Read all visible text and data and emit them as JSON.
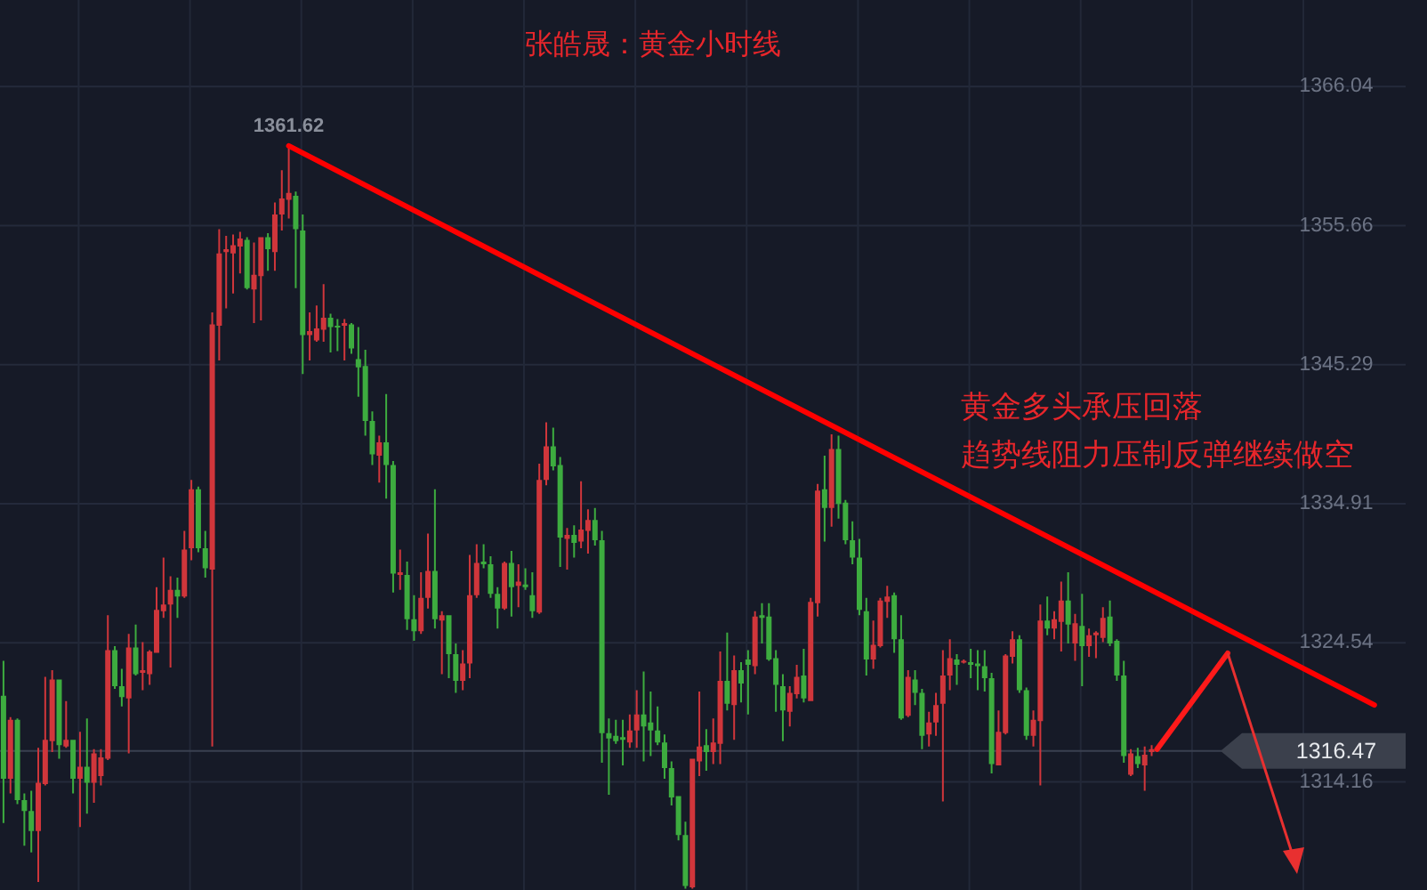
{
  "chart_data": {
    "type": "candlestick",
    "title": "张皓晟：黄金小时线",
    "annotations": [
      "黄金多头承压回落",
      "趋势线阻力压制反弹继续做空",
      {
        "text": "1361.62",
        "y": 1361.62
      }
    ],
    "categories": [
      null,
      null,
      null,
      null,
      null,
      null,
      null,
      null,
      null,
      null,
      null,
      null,
      null,
      null,
      null,
      null,
      null,
      null,
      null,
      null,
      null,
      null,
      null,
      null,
      null,
      null,
      null,
      null,
      null,
      null,
      null,
      null,
      null,
      null,
      null,
      null,
      null,
      null,
      null,
      null,
      null,
      null,
      null,
      null,
      null,
      null,
      null,
      null,
      null,
      null,
      null,
      null,
      null,
      null,
      null,
      null,
      null,
      null,
      null,
      null,
      null,
      null,
      null,
      null,
      null,
      null,
      null,
      null,
      null,
      null,
      null,
      null,
      null,
      null,
      null,
      null,
      null,
      null,
      null,
      null,
      null,
      null,
      null,
      null,
      null,
      null,
      null,
      null,
      null,
      null,
      null,
      null,
      null,
      null,
      null,
      null,
      null,
      null,
      null,
      null,
      null,
      null,
      null,
      null,
      null,
      null,
      null,
      null,
      null,
      null,
      null,
      null,
      null,
      null,
      null,
      null,
      null,
      null,
      null,
      null,
      null,
      null,
      null,
      null,
      null,
      null,
      null,
      null,
      null,
      null,
      null,
      null,
      null,
      null,
      null,
      null,
      null,
      null,
      null,
      null,
      null,
      null,
      null,
      null,
      null,
      null,
      null,
      null,
      null,
      null,
      null,
      null,
      null,
      null,
      null,
      null,
      null,
      null,
      null,
      null,
      null,
      null,
      null,
      null,
      null,
      null,
      null,
      null,
      null,
      null,
      null,
      null,
      null,
      null,
      null,
      null,
      null,
      null,
      null,
      null,
      null,
      null,
      null,
      null,
      null,
      null,
      null,
      null,
      null,
      null,
      null,
      null,
      null,
      null,
      null,
      null,
      null,
      null,
      null,
      null,
      null,
      null
    ],
    "ohlc": [
      [
        1320.6,
        1323.2,
        1311.1,
        1314.4
      ],
      [
        1314.4,
        1319.0,
        1313.3,
        1318.8
      ],
      [
        1318.8,
        1318.9,
        1312.5,
        1312.8
      ],
      [
        1312.8,
        1313.3,
        1309.4,
        1312.0
      ],
      [
        1312.0,
        1313.5,
        1308.9,
        1310.5
      ],
      [
        1310.5,
        1316.7,
        1306.7,
        1314.1
      ],
      [
        1314.0,
        1322.0,
        1313.9,
        1317.3
      ],
      [
        1317.2,
        1322.5,
        1316.4,
        1321.8
      ],
      [
        1321.8,
        1321.8,
        1315.9,
        1316.9
      ],
      [
        1316.8,
        1320.2,
        1316.7,
        1317.3
      ],
      [
        1317.3,
        1317.3,
        1313.3,
        1314.4
      ],
      [
        1314.4,
        1317.9,
        1310.8,
        1315.3
      ],
      [
        1315.3,
        1318.9,
        1311.8,
        1314.1
      ],
      [
        1314.1,
        1316.6,
        1312.6,
        1316.3
      ],
      [
        1314.6,
        1316.6,
        1313.9,
        1316.0
      ],
      [
        1315.9,
        1326.6,
        1315.8,
        1324.0
      ],
      [
        1324.0,
        1324.3,
        1321.1,
        1321.3
      ],
      [
        1321.3,
        1322.6,
        1319.8,
        1320.5
      ],
      [
        1320.4,
        1325.2,
        1316.3,
        1324.2
      ],
      [
        1324.2,
        1325.9,
        1322.1,
        1322.2
      ],
      [
        1322.3,
        1324.6,
        1321.0,
        1322.5
      ],
      [
        1322.2,
        1324.0,
        1321.4,
        1323.9
      ],
      [
        1323.8,
        1328.7,
        1323.8,
        1327.0
      ],
      [
        1326.9,
        1330.9,
        1326.4,
        1327.4
      ],
      [
        1327.4,
        1329.5,
        1322.7,
        1328.5
      ],
      [
        1328.5,
        1329.4,
        1326.4,
        1328.0
      ],
      [
        1328.0,
        1332.9,
        1327.9,
        1331.5
      ],
      [
        1331.6,
        1336.7,
        1330.7,
        1336.0
      ],
      [
        1336.0,
        1336.2,
        1331.3,
        1331.6
      ],
      [
        1331.6,
        1332.9,
        1329.4,
        1330.1
      ],
      [
        1330.0,
        1349.2,
        1316.8,
        1348.3
      ],
      [
        1348.2,
        1355.4,
        1345.6,
        1353.6
      ],
      [
        1353.7,
        1354.9,
        1349.5,
        1353.9
      ],
      [
        1353.6,
        1355.0,
        1350.6,
        1354.2
      ],
      [
        1354.1,
        1355.2,
        1352.1,
        1354.7
      ],
      [
        1354.6,
        1354.8,
        1350.9,
        1351.0
      ],
      [
        1350.9,
        1354.4,
        1348.4,
        1352.0
      ],
      [
        1351.9,
        1354.8,
        1348.6,
        1354.8
      ],
      [
        1354.8,
        1355.1,
        1352.3,
        1353.9
      ],
      [
        1353.7,
        1357.4,
        1352.3,
        1356.5
      ],
      [
        1356.5,
        1359.8,
        1355.3,
        1357.7
      ],
      [
        1357.6,
        1361.62,
        1356.2,
        1358.1
      ],
      [
        1357.9,
        1358.2,
        1351.0,
        1355.4
      ],
      [
        1355.3,
        1356.5,
        1344.6,
        1347.5
      ],
      [
        1347.5,
        1349.2,
        1345.6,
        1347.8
      ],
      [
        1347.1,
        1349.7,
        1347.0,
        1348.0
      ],
      [
        1347.9,
        1351.3,
        1347.0,
        1348.8
      ],
      [
        1348.8,
        1349.1,
        1346.2,
        1348.1
      ],
      [
        1348.2,
        1348.7,
        1346.3,
        1348.1
      ],
      [
        1348.2,
        1348.7,
        1345.6,
        1348.4
      ],
      [
        1348.3,
        1348.4,
        1346.1,
        1346.5
      ],
      [
        1345.7,
        1348.1,
        1342.9,
        1345.1
      ],
      [
        1345.2,
        1346.4,
        1340.0,
        1341.1
      ],
      [
        1341.1,
        1341.8,
        1337.8,
        1338.6
      ],
      [
        1338.5,
        1340.0,
        1336.5,
        1339.5
      ],
      [
        1339.5,
        1343.1,
        1335.3,
        1337.8
      ],
      [
        1337.8,
        1338.1,
        1328.3,
        1329.7
      ],
      [
        1329.6,
        1331.5,
        1328.5,
        1329.8
      ],
      [
        1329.6,
        1330.6,
        1325.5,
        1326.3
      ],
      [
        1326.3,
        1328.1,
        1324.7,
        1325.4
      ],
      [
        1325.4,
        1329.8,
        1325.2,
        1327.9
      ],
      [
        1327.9,
        1332.7,
        1327.1,
        1329.9
      ],
      [
        1329.9,
        1336.0,
        1325.6,
        1326.3
      ],
      [
        1326.2,
        1326.9,
        1322.2,
        1326.6
      ],
      [
        1326.6,
        1326.6,
        1321.9,
        1323.7
      ],
      [
        1323.7,
        1324.5,
        1320.8,
        1321.7
      ],
      [
        1321.7,
        1324.0,
        1321.0,
        1323.0
      ],
      [
        1323.0,
        1331.1,
        1321.9,
        1328.1
      ],
      [
        1328.1,
        1331.9,
        1327.9,
        1330.5
      ],
      [
        1330.6,
        1331.9,
        1330.1,
        1330.4
      ],
      [
        1330.4,
        1331.0,
        1327.9,
        1328.2
      ],
      [
        1328.2,
        1328.7,
        1325.6,
        1327.1
      ],
      [
        1327.1,
        1330.6,
        1327.0,
        1330.5
      ],
      [
        1330.5,
        1331.4,
        1326.5,
        1328.7
      ],
      [
        1328.8,
        1330.4,
        1327.2,
        1329.1
      ],
      [
        1328.9,
        1330.1,
        1328.5,
        1328.7
      ],
      [
        1328.1,
        1329.8,
        1326.4,
        1326.9
      ],
      [
        1326.8,
        1337.9,
        1326.7,
        1336.7
      ],
      [
        1336.7,
        1341.0,
        1336.3,
        1339.2
      ],
      [
        1339.2,
        1340.6,
        1337.4,
        1337.7
      ],
      [
        1337.8,
        1338.4,
        1330.2,
        1332.4
      ],
      [
        1332.3,
        1333.1,
        1330.0,
        1332.6
      ],
      [
        1332.6,
        1333.3,
        1330.9,
        1332.0
      ],
      [
        1332.1,
        1336.6,
        1331.6,
        1333.0
      ],
      [
        1332.9,
        1334.5,
        1331.2,
        1333.7
      ],
      [
        1333.7,
        1334.6,
        1331.8,
        1332.2
      ],
      [
        1332.2,
        1332.9,
        1315.6,
        1317.8
      ],
      [
        1317.8,
        1318.9,
        1313.2,
        1317.4
      ],
      [
        1317.6,
        1318.8,
        1317.0,
        1317.2
      ],
      [
        1317.5,
        1318.8,
        1315.4,
        1317.3
      ],
      [
        1317.1,
        1319.2,
        1316.7,
        1318.0
      ],
      [
        1318.0,
        1321.0,
        1316.7,
        1319.2
      ],
      [
        1319.2,
        1322.4,
        1315.7,
        1318.3
      ],
      [
        1318.6,
        1320.9,
        1316.1,
        1318.0
      ],
      [
        1318.0,
        1319.8,
        1316.9,
        1317.1
      ],
      [
        1317.1,
        1317.7,
        1314.4,
        1315.2
      ],
      [
        1315.2,
        1315.7,
        1312.4,
        1313.0
      ],
      [
        1313.1,
        1313.1,
        1309.8,
        1310.2
      ],
      [
        1310.2,
        1311.2,
        1306.2,
        1306.4
      ],
      [
        1306.3,
        1315.9,
        1306.2,
        1315.9
      ],
      [
        1315.7,
        1320.9,
        1314.6,
        1316.8
      ],
      [
        1316.9,
        1318.1,
        1315.0,
        1316.4
      ],
      [
        1316.4,
        1318.9,
        1315.5,
        1317.1
      ],
      [
        1317.0,
        1323.9,
        1315.5,
        1321.7
      ],
      [
        1321.7,
        1325.3,
        1319.5,
        1320.0
      ],
      [
        1319.9,
        1323.6,
        1317.3,
        1322.5
      ],
      [
        1322.5,
        1323.1,
        1320.1,
        1321.5
      ],
      [
        1323.3,
        1324.0,
        1319.2,
        1322.9
      ],
      [
        1322.8,
        1326.9,
        1322.2,
        1326.5
      ],
      [
        1326.6,
        1327.5,
        1324.5,
        1326.4
      ],
      [
        1326.5,
        1327.5,
        1323.2,
        1323.3
      ],
      [
        1323.4,
        1324.0,
        1319.4,
        1321.4
      ],
      [
        1321.3,
        1322.2,
        1317.2,
        1319.5
      ],
      [
        1319.4,
        1321.3,
        1318.3,
        1320.8
      ],
      [
        1320.7,
        1322.9,
        1320.4,
        1322.0
      ],
      [
        1322.1,
        1324.1,
        1320.1,
        1320.4
      ],
      [
        1320.2,
        1327.9,
        1320.2,
        1327.6
      ],
      [
        1327.5,
        1336.4,
        1326.5,
        1335.9
      ],
      [
        1336.0,
        1338.5,
        1332.1,
        1334.6
      ],
      [
        1334.6,
        1340.1,
        1333.2,
        1339.0
      ],
      [
        1339.0,
        1340.0,
        1333.8,
        1334.9
      ],
      [
        1335.0,
        1335.2,
        1331.9,
        1332.2
      ],
      [
        1332.2,
        1333.6,
        1330.4,
        1330.9
      ],
      [
        1330.9,
        1332.3,
        1326.6,
        1327.0
      ],
      [
        1326.9,
        1327.9,
        1322.1,
        1323.3
      ],
      [
        1323.3,
        1326.2,
        1322.6,
        1324.4
      ],
      [
        1324.3,
        1327.9,
        1324.2,
        1327.7
      ],
      [
        1327.6,
        1328.8,
        1326.4,
        1328.0
      ],
      [
        1328.1,
        1328.3,
        1323.8,
        1324.8
      ],
      [
        1324.8,
        1326.6,
        1318.8,
        1318.9
      ],
      [
        1319.1,
        1322.5,
        1319.0,
        1322.0
      ],
      [
        1321.8,
        1322.5,
        1319.9,
        1320.8
      ],
      [
        1320.8,
        1321.1,
        1316.6,
        1317.6
      ],
      [
        1317.7,
        1319.4,
        1316.8,
        1318.6
      ],
      [
        1318.6,
        1320.8,
        1317.6,
        1319.9
      ],
      [
        1320.0,
        1324.0,
        1312.7,
        1322.1
      ],
      [
        1322.1,
        1324.8,
        1321.0,
        1323.4
      ],
      [
        1323.3,
        1323.7,
        1321.4,
        1322.9
      ],
      [
        1323.1,
        1323.3,
        1323.0,
        1323.2
      ],
      [
        1323.1,
        1324.1,
        1321.9,
        1322.9
      ],
      [
        1323.0,
        1324.0,
        1321.0,
        1322.8
      ],
      [
        1322.8,
        1324.0,
        1320.9,
        1321.9
      ],
      [
        1321.9,
        1322.3,
        1314.8,
        1315.5
      ],
      [
        1315.4,
        1319.5,
        1315.4,
        1317.9
      ],
      [
        1317.8,
        1323.7,
        1317.7,
        1323.6
      ],
      [
        1323.5,
        1325.4,
        1323.0,
        1324.8
      ],
      [
        1324.8,
        1325.1,
        1320.8,
        1321.0
      ],
      [
        1321.0,
        1321.2,
        1317.3,
        1317.6
      ],
      [
        1317.6,
        1319.5,
        1316.8,
        1318.8
      ],
      [
        1318.7,
        1327.4,
        1313.9,
        1326.2
      ],
      [
        1326.2,
        1328.0,
        1325.1,
        1325.6
      ],
      [
        1325.6,
        1326.9,
        1324.8,
        1326.3
      ],
      [
        1326.1,
        1329.1,
        1323.9,
        1327.7
      ],
      [
        1327.7,
        1329.8,
        1324.5,
        1325.9
      ],
      [
        1324.5,
        1326.7,
        1323.2,
        1326.0
      ],
      [
        1325.8,
        1328.2,
        1321.3,
        1324.3
      ],
      [
        1324.3,
        1325.6,
        1323.5,
        1325.1
      ],
      [
        1325.1,
        1325.4,
        1323.4,
        1325.3
      ],
      [
        1324.9,
        1327.2,
        1324.6,
        1326.4
      ],
      [
        1326.5,
        1327.7,
        1324.3,
        1324.5
      ],
      [
        1324.7,
        1324.8,
        1321.7,
        1322.1
      ],
      [
        1322.1,
        1323.2,
        1315.6,
        1316.1
      ],
      [
        1314.7,
        1316.6,
        1314.6,
        1316.3
      ],
      [
        1316.1,
        1316.7,
        1315.2,
        1315.5
      ],
      [
        1315.4,
        1316.8,
        1313.5,
        1316.2
      ],
      [
        1316.4,
        1316.9,
        1316.1,
        1316.6
      ],
      null,
      null,
      null,
      null,
      null,
      null,
      null,
      null,
      null,
      null,
      null,
      null,
      null,
      null,
      null,
      null,
      null,
      null,
      null,
      null,
      null,
      null,
      null,
      null,
      null,
      null,
      null,
      null,
      null,
      null,
      null,
      null,
      null,
      null,
      null,
      null
    ],
    "series": [
      {
        "type": "line",
        "color": "#ff0000",
        "values": [
          null,
          null,
          null,
          null,
          null,
          null,
          null,
          null,
          null,
          null,
          null,
          null,
          null,
          null,
          null,
          null,
          null,
          null,
          null,
          null,
          null,
          null,
          null,
          null,
          null,
          null,
          null,
          null,
          null,
          null,
          null,
          null,
          null,
          null,
          null,
          null,
          null,
          null,
          null,
          null,
          null,
          1361.62,
          null,
          null,
          null,
          null,
          null,
          null,
          null,
          null,
          null,
          null,
          null,
          null,
          null,
          null,
          null,
          null,
          null,
          null,
          null,
          null,
          null,
          null,
          null,
          null,
          null,
          null,
          null,
          null,
          null,
          null,
          null,
          null,
          null,
          null,
          null,
          null,
          null,
          null,
          null,
          null,
          null,
          null,
          null,
          null,
          null,
          null,
          null,
          null,
          null,
          null,
          null,
          null,
          null,
          null,
          null,
          null,
          null,
          null,
          null,
          null,
          null,
          null,
          null,
          null,
          null,
          null,
          null,
          null,
          null,
          null,
          null,
          null,
          null,
          null,
          null,
          null,
          null,
          null,
          null,
          null,
          null,
          null,
          null,
          null,
          null,
          null,
          null,
          null,
          null,
          null,
          null,
          null,
          null,
          null,
          null,
          null,
          null,
          null,
          null,
          null,
          null,
          null,
          null,
          null,
          null,
          null,
          null,
          null,
          null,
          null,
          null,
          null,
          null,
          null,
          null,
          null,
          null,
          null,
          null,
          null,
          null,
          null,
          null,
          null,
          null,
          null,
          null,
          null,
          null,
          null,
          null,
          null,
          null,
          null,
          null,
          null,
          null,
          null,
          null,
          null,
          null,
          null,
          null,
          null,
          null,
          null,
          null,
          null,
          null,
          null,
          null,
          null,
          null,
          null,
          null,
          1319.9,
          null,
          null,
          null,
          null
        ]
      }
    ],
    "ylim": [
      1306.1,
      1372.5
    ],
    "yticks": [
      1314.16,
      1324.54,
      1334.91,
      1345.29,
      1355.66,
      1366.04
    ],
    "ref_lines": [
      {
        "axis": "y",
        "value": 1316.47,
        "label": "1316.47"
      }
    ],
    "grid": true
  }
}
